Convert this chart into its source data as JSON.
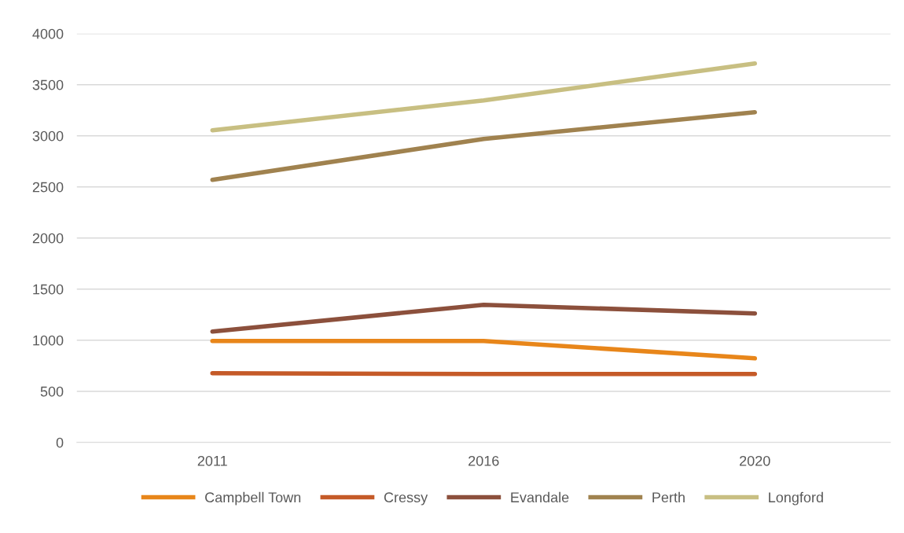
{
  "chart_data": {
    "type": "line",
    "categories": [
      "2011",
      "2016",
      "2020"
    ],
    "series": [
      {
        "name": "Campbell Town",
        "color": "#e8861a",
        "values": [
          992,
          992,
          823
        ]
      },
      {
        "name": "Cressy",
        "color": "#c55a28",
        "values": [
          677,
          669,
          669
        ]
      },
      {
        "name": "Evandale",
        "color": "#8c503c",
        "values": [
          1085,
          1346,
          1262
        ]
      },
      {
        "name": "Perth",
        "color": "#a0824f",
        "values": [
          2569,
          2969,
          3231
        ]
      },
      {
        "name": "Longford",
        "color": "#c8bf82",
        "values": [
          3054,
          3346,
          3708
        ]
      }
    ],
    "ylim": [
      0,
      4000
    ],
    "yticks": [
      0,
      500,
      1000,
      1500,
      2000,
      2500,
      3000,
      3500,
      4000
    ],
    "grid": "y",
    "legend": "bottom",
    "marker": "none",
    "line_style": "solid"
  }
}
